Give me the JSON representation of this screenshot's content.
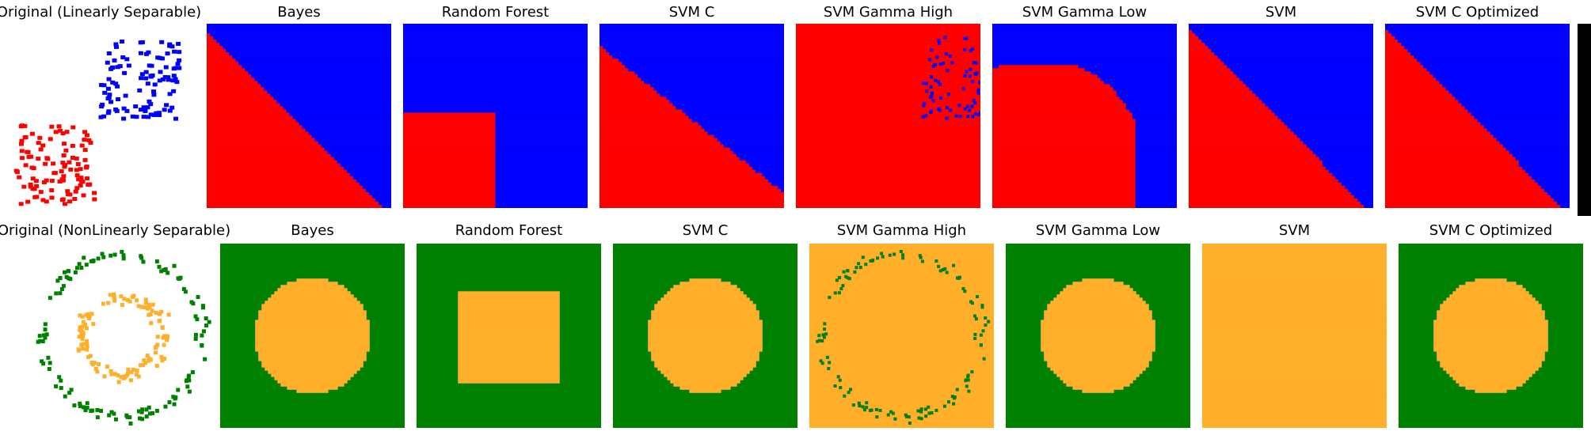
{
  "colors": {
    "class_a_linear": "#ff0000",
    "class_b_linear": "#0000ff",
    "class_a_nonlinear": "#008000",
    "class_b_nonlinear": "#ffaf2a",
    "edge_bar": "#000000"
  },
  "chart_data": [
    {
      "type": "scatter",
      "title": "Original (Linearly Separable)",
      "series": [
        {
          "color": "red",
          "cluster_center": [
            2.0,
            2.0
          ],
          "cluster_spread": 1.0,
          "count": 110
        },
        {
          "color": "blue",
          "cluster_center": [
            6.5,
            6.5
          ],
          "cluster_spread": 1.0,
          "count": 110
        }
      ]
    },
    {
      "type": "heatmap",
      "title": "Bayes",
      "region_colors": [
        "red",
        "blue"
      ],
      "boundary": "diagonal, red lower-left, blue upper-right"
    },
    {
      "type": "heatmap",
      "title": "Random Forest",
      "region_colors": [
        "red",
        "blue"
      ],
      "boundary": "axis-aligned, red in lower-left block"
    },
    {
      "type": "heatmap",
      "title": "SVM C",
      "region_colors": [
        "red",
        "blue"
      ],
      "boundary": "diagonal"
    },
    {
      "type": "heatmap",
      "title": "SVM Gamma High",
      "region_colors": [
        "red",
        "blue"
      ],
      "boundary": "blue only around training points"
    },
    {
      "type": "heatmap",
      "title": "SVM Gamma Low",
      "region_colors": [
        "red",
        "blue"
      ],
      "boundary": "curved"
    },
    {
      "type": "heatmap",
      "title": "SVM",
      "region_colors": [
        "red",
        "blue"
      ],
      "boundary": "diagonal"
    },
    {
      "type": "heatmap",
      "title": "SVM C Optimized",
      "region_colors": [
        "red",
        "blue"
      ],
      "boundary": "diagonal"
    },
    {
      "type": "scatter",
      "title": "Original (NonLinearly Separable)",
      "series": [
        {
          "color": "green",
          "shape": "outer ring",
          "radius": 1.0,
          "count": 130
        },
        {
          "color": "orange",
          "shape": "inner ring",
          "radius": 0.5,
          "count": 120
        }
      ]
    },
    {
      "type": "heatmap",
      "title": "Bayes",
      "region_colors": [
        "green",
        "orange"
      ],
      "boundary": "circle"
    },
    {
      "type": "heatmap",
      "title": "Random Forest",
      "region_colors": [
        "green",
        "orange"
      ],
      "boundary": "square"
    },
    {
      "type": "heatmap",
      "title": "SVM C",
      "region_colors": [
        "green",
        "orange"
      ],
      "boundary": "circle"
    },
    {
      "type": "heatmap",
      "title": "SVM Gamma High",
      "region_colors": [
        "green",
        "orange"
      ],
      "boundary": "green only around outer training points"
    },
    {
      "type": "heatmap",
      "title": "SVM Gamma Low",
      "region_colors": [
        "green",
        "orange"
      ],
      "boundary": "circle"
    },
    {
      "type": "heatmap",
      "title": "SVM",
      "region_colors": [
        "orange"
      ],
      "boundary": "none, all orange"
    },
    {
      "type": "heatmap",
      "title": "SVM C Optimized",
      "region_colors": [
        "green",
        "orange"
      ],
      "boundary": "circle"
    }
  ]
}
